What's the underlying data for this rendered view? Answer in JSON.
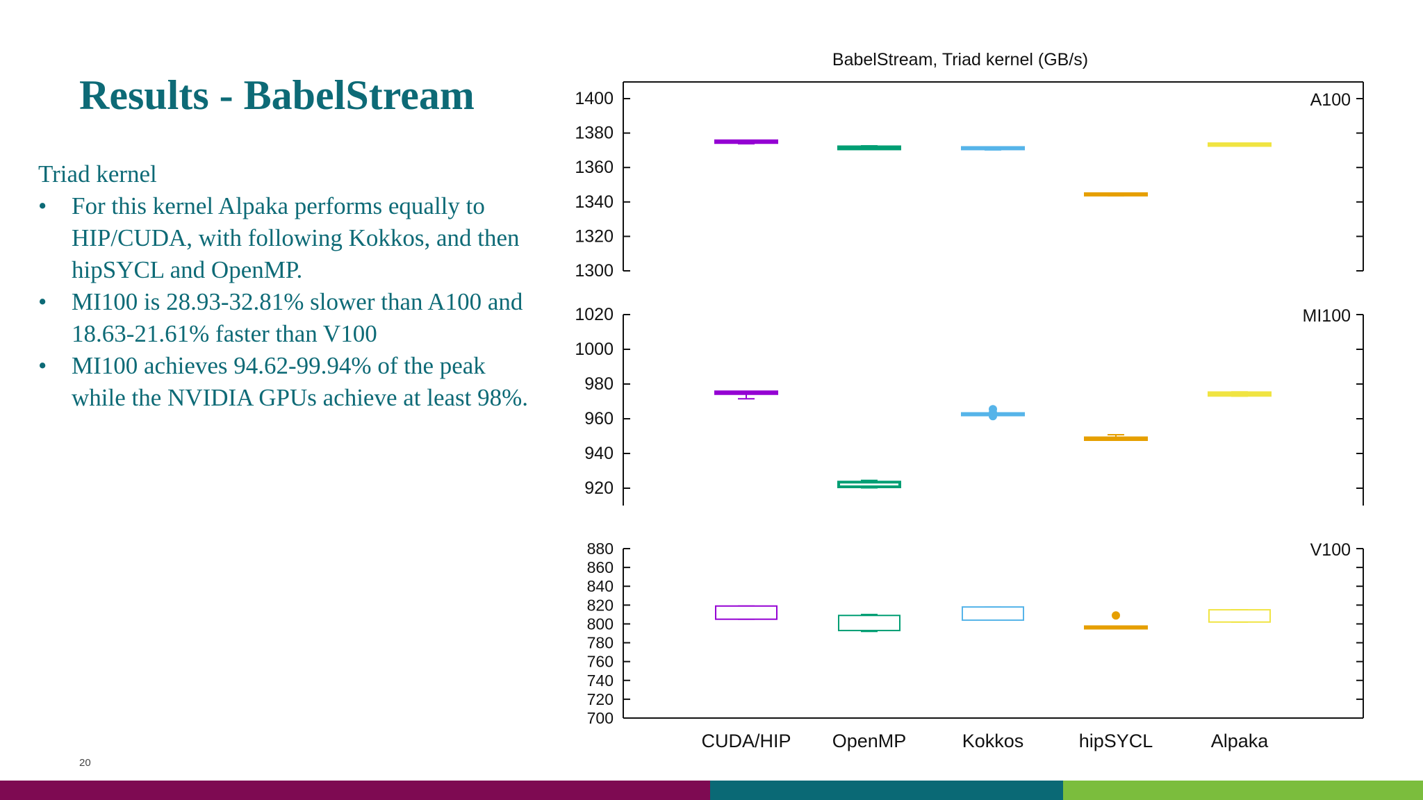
{
  "slide": {
    "title": "Results - BabelStream",
    "subheading": "Triad kernel",
    "bullets": [
      "For this kernel Alpaka performs equally to HIP/CUDA, with following Kokkos, and then hipSYCL and OpenMP.",
      "MI100 is 28.93-32.81% slower than A100 and 18.63-21.61% faster than V100",
      "MI100 achieves 94.62-99.94% of the peak while the NVIDIA GPUs achieve at least 98%."
    ],
    "page_number": "20"
  },
  "colors": {
    "title": "#0d6a76",
    "footer": [
      "#7e0a52",
      "#0a6975",
      "#7bbd3d"
    ],
    "series": [
      "#9400d3",
      "#009e73",
      "#56b4e9",
      "#e69f00",
      "#f0e442"
    ]
  },
  "chart_data": {
    "type": "box",
    "title": "BabelStream, Triad kernel (GB/s)",
    "categories": [
      "CUDA/HIP",
      "OpenMP",
      "Kokkos",
      "hipSYCL",
      "Alpaka"
    ],
    "panels": [
      {
        "label": "A100",
        "ylim": [
          1300,
          1400
        ],
        "yticks": [
          1300,
          1320,
          1340,
          1360,
          1380,
          1400
        ],
        "boxes": [
          {
            "q1": 1374.5,
            "q3": 1375.5,
            "min": 1373.8,
            "max": 1375.8,
            "outliers": []
          },
          {
            "q1": 1370.8,
            "q3": 1372.0,
            "min": 1370.6,
            "max": 1372.6,
            "outliers": []
          },
          {
            "q1": 1370.8,
            "q3": 1371.6,
            "min": 1370.2,
            "max": 1371.8,
            "outliers": []
          },
          {
            "q1": 1344.2,
            "q3": 1344.8,
            "min": 1343.6,
            "max": 1345.0,
            "outliers": []
          },
          {
            "q1": 1372.8,
            "q3": 1373.8,
            "min": 1372.5,
            "max": 1374.0,
            "outliers": []
          }
        ]
      },
      {
        "label": "MI100",
        "ylim": [
          910,
          1020
        ],
        "yticks": [
          920,
          940,
          960,
          980,
          1000,
          1020
        ],
        "boxes": [
          {
            "q1": 974.5,
            "q3": 975.5,
            "min": 971.5,
            "max": 975.5,
            "outliers": []
          },
          {
            "q1": 920.8,
            "q3": 923.5,
            "min": 920.2,
            "max": 924.5,
            "outliers": []
          },
          {
            "q1": 962.5,
            "q3": 963.0,
            "min": 962.0,
            "max": 963.2,
            "outliers": [
              961.5,
              963.5,
              965.5
            ]
          },
          {
            "q1": 948.0,
            "q3": 949.0,
            "min": 947.8,
            "max": 950.8,
            "outliers": []
          },
          {
            "q1": 973.5,
            "q3": 975.0,
            "min": 973.0,
            "max": 975.5,
            "outliers": []
          }
        ]
      },
      {
        "label": "V100",
        "ylim": [
          700,
          880
        ],
        "yticks": [
          700,
          720,
          740,
          760,
          780,
          800,
          820,
          840,
          860,
          880
        ],
        "boxes": [
          {
            "q1": 805,
            "q3": 819,
            "min": 805,
            "max": 819,
            "outliers": []
          },
          {
            "q1": 793,
            "q3": 809,
            "min": 792,
            "max": 810,
            "outliers": []
          },
          {
            "q1": 804,
            "q3": 818,
            "min": 804,
            "max": 818,
            "outliers": []
          },
          {
            "q1": 796,
            "q3": 797,
            "min": 795.5,
            "max": 797,
            "outliers": [
              809
            ]
          },
          {
            "q1": 802,
            "q3": 815,
            "min": 802,
            "max": 815,
            "outliers": []
          }
        ]
      }
    ]
  }
}
